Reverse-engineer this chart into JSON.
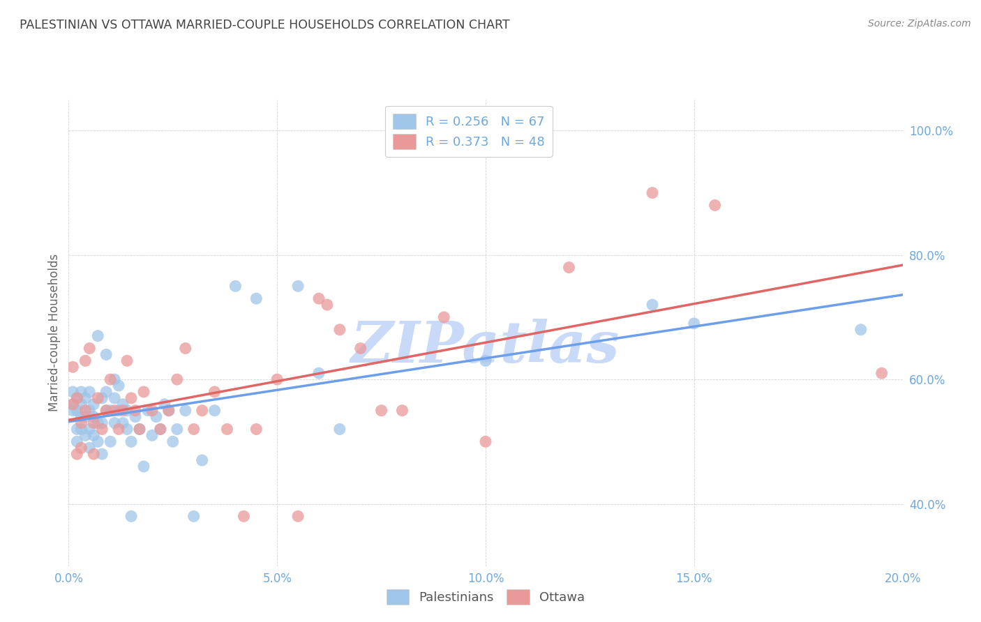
{
  "title": "PALESTINIAN VS OTTAWA MARRIED-COUPLE HOUSEHOLDS CORRELATION CHART",
  "source": "Source: ZipAtlas.com",
  "ylabel": "Married-couple Households",
  "xlim": [
    0.0,
    0.2
  ],
  "ylim": [
    0.3,
    1.05
  ],
  "xtick_labels": [
    "0.0%",
    "5.0%",
    "10.0%",
    "15.0%",
    "20.0%"
  ],
  "xtick_vals": [
    0.0,
    0.05,
    0.1,
    0.15,
    0.2
  ],
  "ytick_labels": [
    "40.0%",
    "60.0%",
    "80.0%",
    "100.0%"
  ],
  "ytick_vals": [
    0.4,
    0.6,
    0.8,
    1.0
  ],
  "blue_color": "#9fc5e8",
  "pink_color": "#ea9999",
  "blue_line_color": "#6d9eeb",
  "pink_line_color": "#e06666",
  "axis_label_color": "#6fa8dc",
  "title_color": "#434343",
  "watermark_text": "ZIPatlas",
  "watermark_color": "#c9daf8",
  "legend_label1": "R = 0.256   N = 67",
  "legend_label2": "R = 0.373   N = 48",
  "legend_label_bottom1": "Palestinians",
  "legend_label_bottom2": "Ottawa",
  "background_color": "#ffffff",
  "grid_color": "#b7b7b7",
  "blue_x": [
    0.001,
    0.001,
    0.001,
    0.002,
    0.002,
    0.002,
    0.002,
    0.003,
    0.003,
    0.003,
    0.003,
    0.004,
    0.004,
    0.004,
    0.005,
    0.005,
    0.005,
    0.005,
    0.006,
    0.006,
    0.006,
    0.007,
    0.007,
    0.007,
    0.008,
    0.008,
    0.008,
    0.009,
    0.009,
    0.009,
    0.01,
    0.01,
    0.011,
    0.011,
    0.011,
    0.012,
    0.012,
    0.013,
    0.013,
    0.014,
    0.014,
    0.015,
    0.015,
    0.016,
    0.017,
    0.018,
    0.019,
    0.02,
    0.021,
    0.022,
    0.023,
    0.024,
    0.025,
    0.026,
    0.028,
    0.03,
    0.032,
    0.035,
    0.04,
    0.045,
    0.055,
    0.06,
    0.065,
    0.1,
    0.14,
    0.15,
    0.19
  ],
  "blue_y": [
    0.55,
    0.56,
    0.58,
    0.5,
    0.52,
    0.55,
    0.57,
    0.52,
    0.54,
    0.56,
    0.58,
    0.51,
    0.54,
    0.57,
    0.49,
    0.52,
    0.55,
    0.58,
    0.51,
    0.54,
    0.56,
    0.5,
    0.53,
    0.67,
    0.48,
    0.53,
    0.57,
    0.55,
    0.58,
    0.64,
    0.5,
    0.55,
    0.53,
    0.57,
    0.6,
    0.55,
    0.59,
    0.53,
    0.56,
    0.52,
    0.55,
    0.38,
    0.5,
    0.54,
    0.52,
    0.46,
    0.55,
    0.51,
    0.54,
    0.52,
    0.56,
    0.55,
    0.5,
    0.52,
    0.55,
    0.38,
    0.47,
    0.55,
    0.75,
    0.73,
    0.75,
    0.61,
    0.52,
    0.63,
    0.72,
    0.69,
    0.68
  ],
  "pink_x": [
    0.001,
    0.001,
    0.002,
    0.002,
    0.003,
    0.003,
    0.004,
    0.004,
    0.005,
    0.006,
    0.006,
    0.007,
    0.008,
    0.009,
    0.01,
    0.011,
    0.012,
    0.013,
    0.014,
    0.015,
    0.016,
    0.017,
    0.018,
    0.02,
    0.022,
    0.024,
    0.026,
    0.028,
    0.03,
    0.032,
    0.035,
    0.038,
    0.042,
    0.045,
    0.05,
    0.055,
    0.06,
    0.062,
    0.065,
    0.07,
    0.075,
    0.08,
    0.09,
    0.1,
    0.12,
    0.14,
    0.155,
    0.195
  ],
  "pink_y": [
    0.56,
    0.62,
    0.48,
    0.57,
    0.49,
    0.53,
    0.55,
    0.63,
    0.65,
    0.48,
    0.53,
    0.57,
    0.52,
    0.55,
    0.6,
    0.55,
    0.52,
    0.55,
    0.63,
    0.57,
    0.55,
    0.52,
    0.58,
    0.55,
    0.52,
    0.55,
    0.6,
    0.65,
    0.52,
    0.55,
    0.58,
    0.52,
    0.38,
    0.52,
    0.6,
    0.38,
    0.73,
    0.72,
    0.68,
    0.65,
    0.55,
    0.55,
    0.7,
    0.5,
    0.78,
    0.9,
    0.88,
    0.61
  ]
}
